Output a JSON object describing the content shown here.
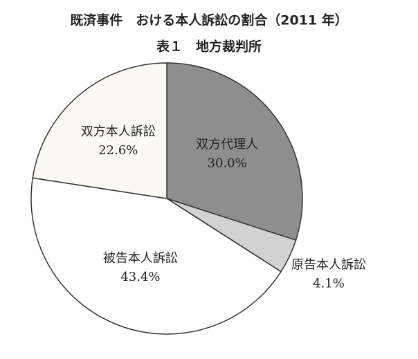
{
  "chart_data": {
    "type": "pie",
    "title": "既済事件　おける本人訴訟の割合（2011 年）",
    "subtitle": "表１　地方裁判所",
    "categories": [
      "双方代理人",
      "原告本人訴訟",
      "被告本人訴訟",
      "双方本人訴訟"
    ],
    "values": [
      30.0,
      4.1,
      43.4,
      22.6
    ],
    "value_labels": [
      "30.0%",
      "4.1%",
      "43.4%",
      "22.6%"
    ],
    "colors": [
      "#8e8e8e",
      "#d2d2d2",
      "#ffffff",
      "#fbfaf2"
    ]
  }
}
